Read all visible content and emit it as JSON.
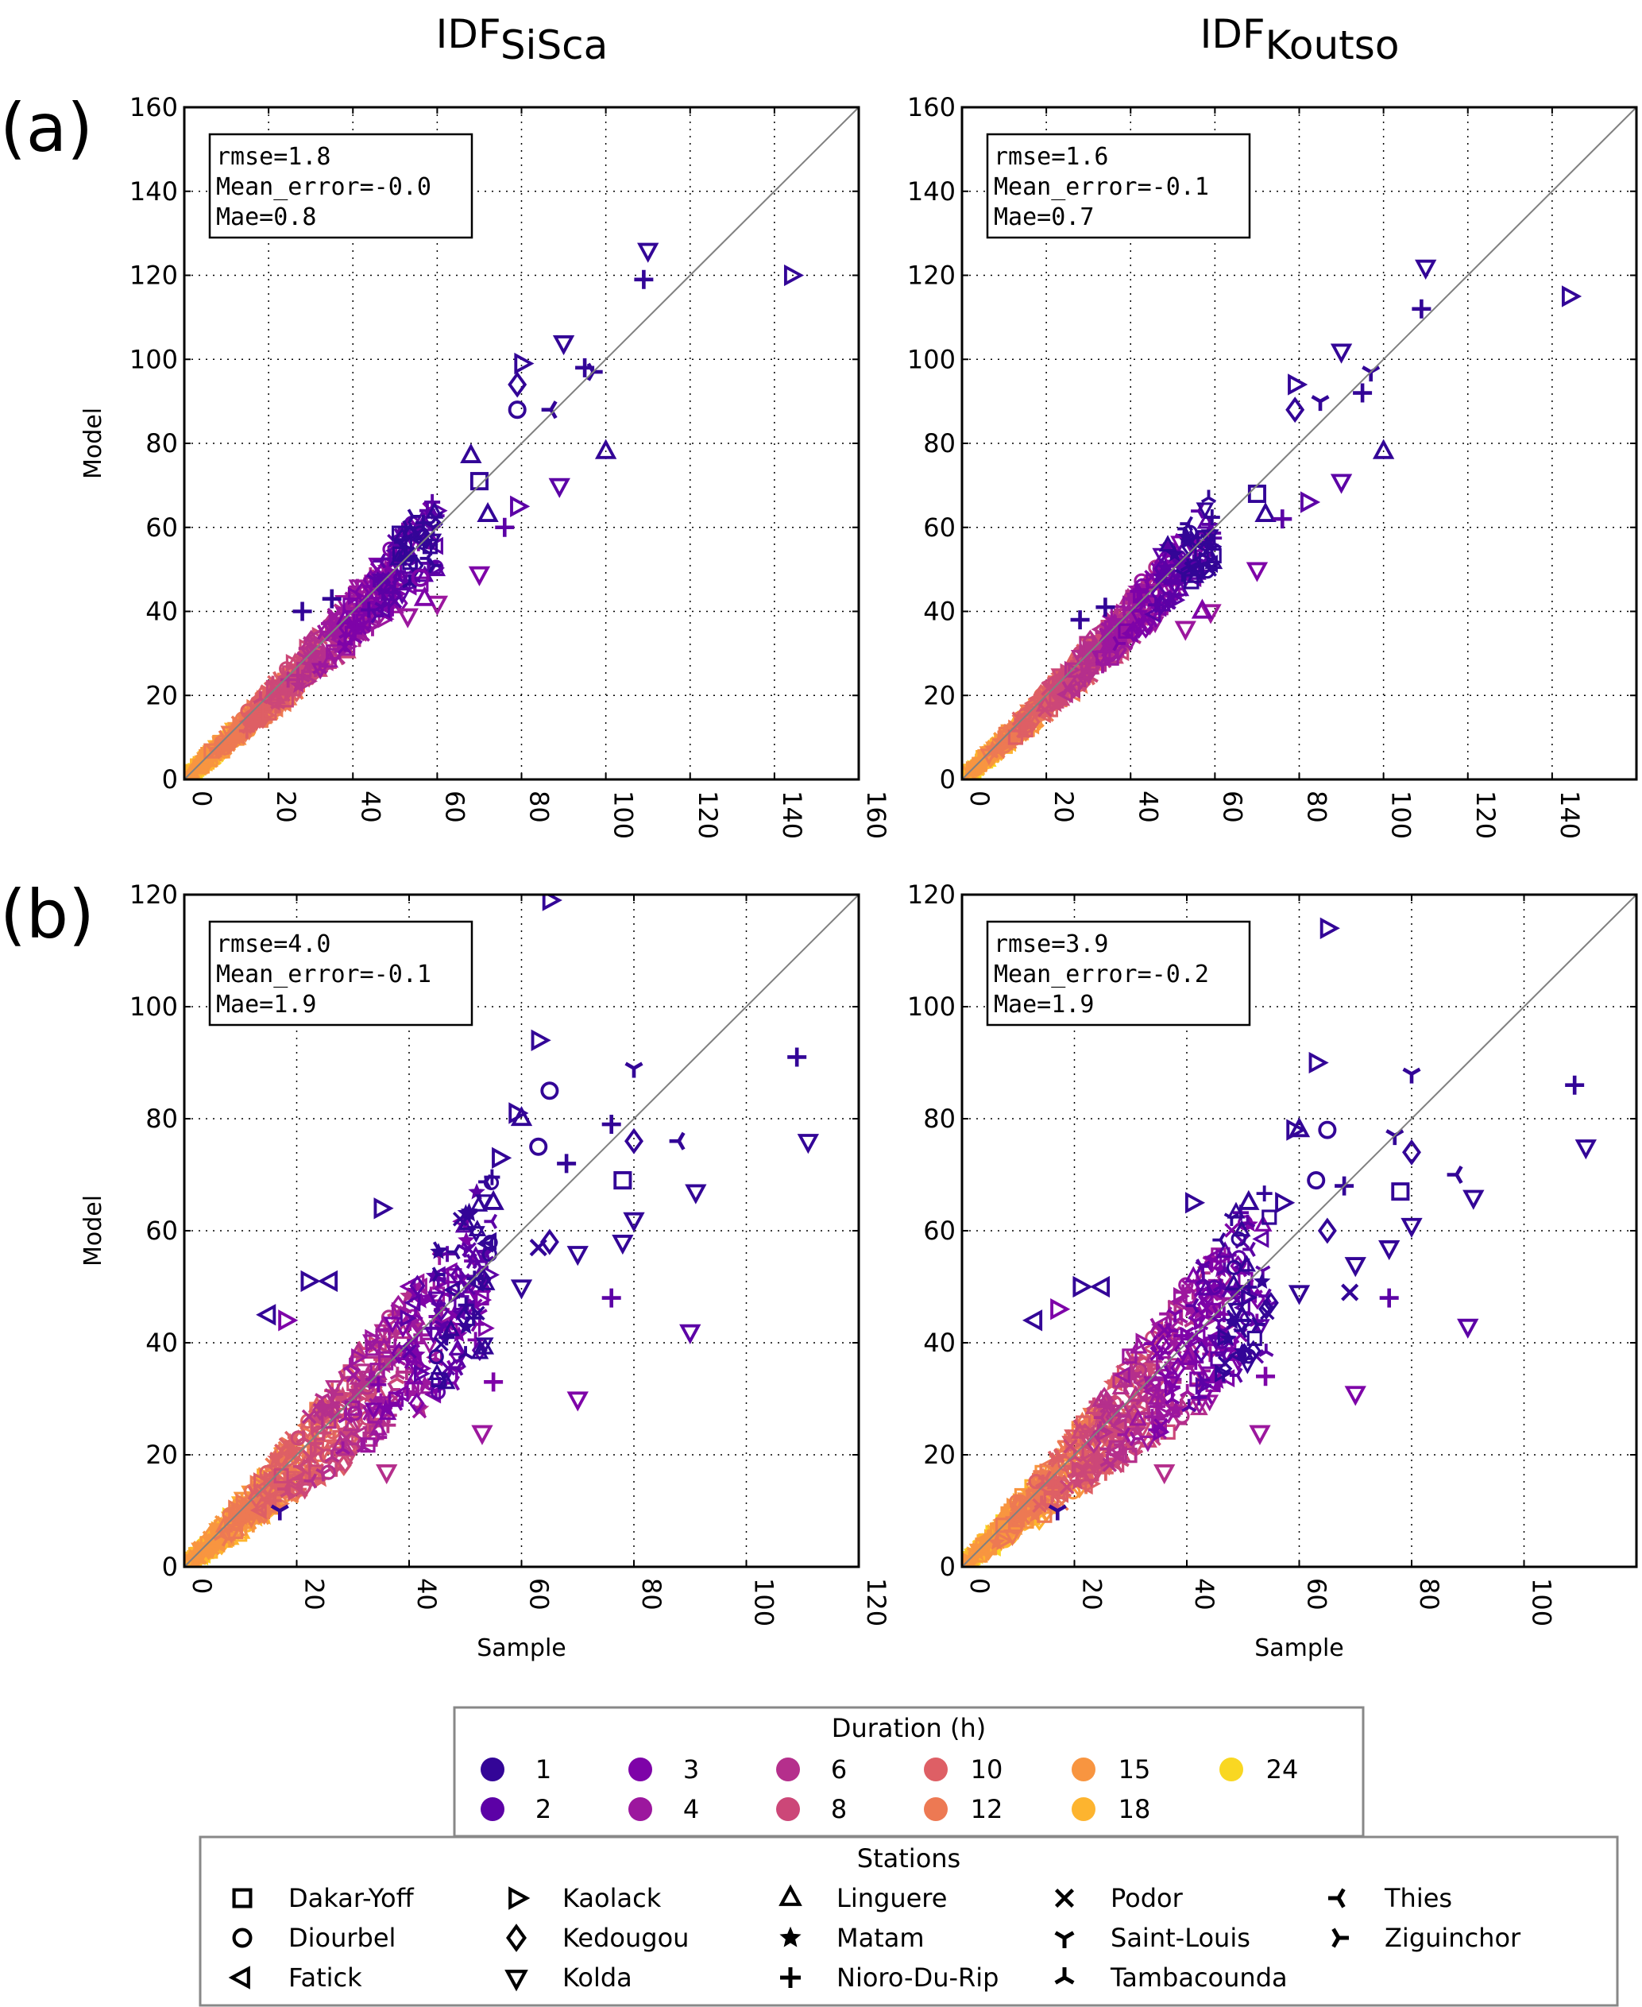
{
  "figure": {
    "row_labels": [
      "(a)",
      "(b)"
    ],
    "column_titles": [
      {
        "main": "IDF",
        "sub": "SiSca"
      },
      {
        "main": "IDF",
        "sub": "Koutso"
      }
    ]
  },
  "chart_data": [
    {
      "type": "scatter",
      "id": "a-sisca",
      "row": "(a)",
      "column_title": "IDF_SiSca",
      "xlabel": "",
      "ylabel": "Model",
      "xlim": [
        0,
        160
      ],
      "ylim": [
        0,
        160
      ],
      "xticks": [
        0,
        20,
        40,
        60,
        80,
        100,
        120,
        140,
        160
      ],
      "yticks": [
        0,
        20,
        40,
        60,
        80,
        100,
        120,
        140,
        160
      ],
      "grid": true,
      "reference_line": "y=x",
      "stats": [
        "rmse=1.8",
        "Mean_error=-0.0",
        "Mae=0.8"
      ],
      "cloud": {
        "spread": 0.16,
        "xmax": 60
      },
      "outliers": [
        {
          "x": 110,
          "y": 126,
          "station": "Kolda",
          "duration": 1
        },
        {
          "x": 109,
          "y": 119,
          "station": "Nioro-Du-Rip",
          "duration": 1
        },
        {
          "x": 144,
          "y": 120,
          "station": "Kaolack",
          "duration": 1
        },
        {
          "x": 90,
          "y": 104,
          "station": "Kolda",
          "duration": 1
        },
        {
          "x": 80,
          "y": 99,
          "station": "Kaolack",
          "duration": 1
        },
        {
          "x": 95,
          "y": 98,
          "station": "Nioro-Du-Rip",
          "duration": 1
        },
        {
          "x": 97,
          "y": 97,
          "station": "Ziguinchor",
          "duration": 1
        },
        {
          "x": 79,
          "y": 94,
          "station": "Kedougou",
          "duration": 1
        },
        {
          "x": 79,
          "y": 88,
          "station": "Diourbel",
          "duration": 1
        },
        {
          "x": 87,
          "y": 88,
          "station": "Thies",
          "duration": 1
        },
        {
          "x": 100,
          "y": 78,
          "station": "Linguere",
          "duration": 1
        },
        {
          "x": 89,
          "y": 70,
          "station": "Kolda",
          "duration": 2
        },
        {
          "x": 70,
          "y": 71,
          "station": "Dakar-Yoff",
          "duration": 1
        },
        {
          "x": 79,
          "y": 65,
          "station": "Kaolack",
          "duration": 2
        },
        {
          "x": 70,
          "y": 49,
          "station": "Kolda",
          "duration": 3
        },
        {
          "x": 60,
          "y": 42,
          "station": "Kolda",
          "duration": 4
        },
        {
          "x": 53,
          "y": 39,
          "station": "Kolda",
          "duration": 4
        },
        {
          "x": 28,
          "y": 40,
          "station": "Nioro-Du-Rip",
          "duration": 1
        },
        {
          "x": 35,
          "y": 43,
          "station": "Nioro-Du-Rip",
          "duration": 1
        },
        {
          "x": 56,
          "y": 48,
          "station": "Diourbel",
          "duration": 3
        },
        {
          "x": 57,
          "y": 43,
          "station": "Linguere",
          "duration": 3
        },
        {
          "x": 68,
          "y": 77,
          "station": "Linguere",
          "duration": 1
        },
        {
          "x": 76,
          "y": 60,
          "station": "Nioro-Du-Rip",
          "duration": 2
        },
        {
          "x": 72,
          "y": 63,
          "station": "Linguere",
          "duration": 1
        }
      ]
    },
    {
      "type": "scatter",
      "id": "a-koutso",
      "row": "(a)",
      "column_title": "IDF_Koutso",
      "xlabel": "",
      "ylabel": "",
      "xlim": [
        0,
        160
      ],
      "ylim": [
        0,
        160
      ],
      "xticks": [
        0,
        20,
        40,
        60,
        80,
        100,
        120,
        140,
        160
      ],
      "yticks": [
        0,
        20,
        40,
        60,
        80,
        100,
        120,
        140,
        160
      ],
      "grid": true,
      "reference_line": "y=x",
      "stats": [
        "rmse=1.6",
        "Mean_error=-0.1",
        "Mae=0.7"
      ],
      "cloud": {
        "spread": 0.15,
        "xmax": 60
      },
      "outliers": [
        {
          "x": 110,
          "y": 122,
          "station": "Kolda",
          "duration": 1
        },
        {
          "x": 109,
          "y": 112,
          "station": "Nioro-Du-Rip",
          "duration": 1
        },
        {
          "x": 144,
          "y": 115,
          "station": "Kaolack",
          "duration": 1
        },
        {
          "x": 90,
          "y": 102,
          "station": "Kolda",
          "duration": 1
        },
        {
          "x": 79,
          "y": 94,
          "station": "Kaolack",
          "duration": 1
        },
        {
          "x": 97,
          "y": 97,
          "station": "Saint-Louis",
          "duration": 1
        },
        {
          "x": 95,
          "y": 92,
          "station": "Nioro-Du-Rip",
          "duration": 1
        },
        {
          "x": 79,
          "y": 88,
          "station": "Kedougou",
          "duration": 1
        },
        {
          "x": 85,
          "y": 90,
          "station": "Saint-Louis",
          "duration": 1
        },
        {
          "x": 100,
          "y": 78,
          "station": "Linguere",
          "duration": 1
        },
        {
          "x": 90,
          "y": 71,
          "station": "Kolda",
          "duration": 2
        },
        {
          "x": 70,
          "y": 68,
          "station": "Dakar-Yoff",
          "duration": 1
        },
        {
          "x": 82,
          "y": 66,
          "station": "Kaolack",
          "duration": 2
        },
        {
          "x": 70,
          "y": 50,
          "station": "Kolda",
          "duration": 3
        },
        {
          "x": 59,
          "y": 40,
          "station": "Kolda",
          "duration": 4
        },
        {
          "x": 53,
          "y": 36,
          "station": "Kolda",
          "duration": 4
        },
        {
          "x": 28,
          "y": 38,
          "station": "Nioro-Du-Rip",
          "duration": 1
        },
        {
          "x": 34,
          "y": 41,
          "station": "Nioro-Du-Rip",
          "duration": 1
        },
        {
          "x": 57,
          "y": 40,
          "station": "Linguere",
          "duration": 3
        },
        {
          "x": 72,
          "y": 63,
          "station": "Linguere",
          "duration": 1
        },
        {
          "x": 76,
          "y": 62,
          "station": "Nioro-Du-Rip",
          "duration": 2
        }
      ]
    },
    {
      "type": "scatter",
      "id": "b-sisca",
      "row": "(b)",
      "column_title": "IDF_SiSca",
      "xlabel": "Sample",
      "ylabel": "Model",
      "xlim": [
        0,
        120
      ],
      "ylim": [
        0,
        120
      ],
      "xticks": [
        0,
        20,
        40,
        60,
        80,
        100,
        120
      ],
      "yticks": [
        0,
        20,
        40,
        60,
        80,
        100,
        120
      ],
      "grid": true,
      "reference_line": "y=x",
      "stats": [
        "rmse=4.0",
        "Mean_error=-0.1",
        "Mae=1.9"
      ],
      "cloud": {
        "spread": 0.3,
        "xmax": 55
      },
      "outliers": [
        {
          "x": 65,
          "y": 119,
          "station": "Kaolack",
          "duration": 1
        },
        {
          "x": 63,
          "y": 94,
          "station": "Kaolack",
          "duration": 1
        },
        {
          "x": 109,
          "y": 91,
          "station": "Nioro-Du-Rip",
          "duration": 1
        },
        {
          "x": 80,
          "y": 89,
          "station": "Saint-Louis",
          "duration": 1
        },
        {
          "x": 65,
          "y": 85,
          "station": "Diourbel",
          "duration": 1
        },
        {
          "x": 59,
          "y": 81,
          "station": "Kaolack",
          "duration": 1
        },
        {
          "x": 60,
          "y": 80,
          "station": "Linguere",
          "duration": 1
        },
        {
          "x": 111,
          "y": 76,
          "station": "Kolda",
          "duration": 1
        },
        {
          "x": 80,
          "y": 76,
          "station": "Kedougou",
          "duration": 1
        },
        {
          "x": 88,
          "y": 76,
          "station": "Thies",
          "duration": 1
        },
        {
          "x": 63,
          "y": 75,
          "station": "Diourbel",
          "duration": 1
        },
        {
          "x": 76,
          "y": 79,
          "station": "Nioro-Du-Rip",
          "duration": 1
        },
        {
          "x": 78,
          "y": 69,
          "station": "Dakar-Yoff",
          "duration": 1
        },
        {
          "x": 91,
          "y": 67,
          "station": "Kolda",
          "duration": 1
        },
        {
          "x": 56,
          "y": 73,
          "station": "Kaolack",
          "duration": 1
        },
        {
          "x": 68,
          "y": 72,
          "station": "Nioro-Du-Rip",
          "duration": 1
        },
        {
          "x": 35,
          "y": 64,
          "station": "Kaolack",
          "duration": 1
        },
        {
          "x": 55,
          "y": 65,
          "station": "Linguere",
          "duration": 1
        },
        {
          "x": 80,
          "y": 62,
          "station": "Kolda",
          "duration": 1
        },
        {
          "x": 78,
          "y": 58,
          "station": "Kolda",
          "duration": 1
        },
        {
          "x": 65,
          "y": 58,
          "station": "Kedougou",
          "duration": 1
        },
        {
          "x": 70,
          "y": 56,
          "station": "Kolda",
          "duration": 1
        },
        {
          "x": 63,
          "y": 57,
          "station": "Podor",
          "duration": 1
        },
        {
          "x": 60,
          "y": 50,
          "station": "Kolda",
          "duration": 1
        },
        {
          "x": 76,
          "y": 48,
          "station": "Nioro-Du-Rip",
          "duration": 2
        },
        {
          "x": 22,
          "y": 51,
          "station": "Kaolack",
          "duration": 1
        },
        {
          "x": 26,
          "y": 51,
          "station": "Fatick",
          "duration": 1
        },
        {
          "x": 90,
          "y": 42,
          "station": "Kolda",
          "duration": 2
        },
        {
          "x": 15,
          "y": 45,
          "station": "Fatick",
          "duration": 1
        },
        {
          "x": 18,
          "y": 44,
          "station": "Kaolack",
          "duration": 3
        },
        {
          "x": 55,
          "y": 33,
          "station": "Nioro-Du-Rip",
          "duration": 3
        },
        {
          "x": 70,
          "y": 30,
          "station": "Kolda",
          "duration": 3
        },
        {
          "x": 53,
          "y": 24,
          "station": "Kolda",
          "duration": 4
        },
        {
          "x": 36,
          "y": 17,
          "station": "Kolda",
          "duration": 6
        },
        {
          "x": 17,
          "y": 10,
          "station": "Saint-Louis",
          "duration": 1
        }
      ]
    },
    {
      "type": "scatter",
      "id": "b-koutso",
      "row": "(b)",
      "column_title": "IDF_Koutso",
      "xlabel": "Sample",
      "ylabel": "",
      "xlim": [
        0,
        120
      ],
      "ylim": [
        0,
        120
      ],
      "xticks": [
        0,
        20,
        40,
        60,
        80,
        100,
        120
      ],
      "yticks": [
        0,
        20,
        40,
        60,
        80,
        100,
        120
      ],
      "grid": true,
      "reference_line": "y=x",
      "stats": [
        "rmse=3.9",
        "Mean_error=-0.2",
        "Mae=1.9"
      ],
      "cloud": {
        "spread": 0.3,
        "xmax": 55
      },
      "outliers": [
        {
          "x": 65,
          "y": 114,
          "station": "Kaolack",
          "duration": 1
        },
        {
          "x": 63,
          "y": 90,
          "station": "Kaolack",
          "duration": 1
        },
        {
          "x": 109,
          "y": 86,
          "station": "Nioro-Du-Rip",
          "duration": 1
        },
        {
          "x": 80,
          "y": 88,
          "station": "Saint-Louis",
          "duration": 1
        },
        {
          "x": 65,
          "y": 78,
          "station": "Diourbel",
          "duration": 1
        },
        {
          "x": 59,
          "y": 78,
          "station": "Kaolack",
          "duration": 1
        },
        {
          "x": 60,
          "y": 78,
          "station": "Linguere",
          "duration": 1
        },
        {
          "x": 111,
          "y": 75,
          "station": "Kolda",
          "duration": 1
        },
        {
          "x": 80,
          "y": 74,
          "station": "Kedougou",
          "duration": 1
        },
        {
          "x": 88,
          "y": 70,
          "station": "Thies",
          "duration": 1
        },
        {
          "x": 63,
          "y": 69,
          "station": "Diourbel",
          "duration": 1
        },
        {
          "x": 77,
          "y": 77,
          "station": "Saint-Louis",
          "duration": 1
        },
        {
          "x": 78,
          "y": 67,
          "station": "Dakar-Yoff",
          "duration": 1
        },
        {
          "x": 91,
          "y": 66,
          "station": "Kolda",
          "duration": 1
        },
        {
          "x": 57,
          "y": 65,
          "station": "Kaolack",
          "duration": 1
        },
        {
          "x": 68,
          "y": 68,
          "station": "Nioro-Du-Rip",
          "duration": 1
        },
        {
          "x": 41,
          "y": 65,
          "station": "Kaolack",
          "duration": 1
        },
        {
          "x": 51,
          "y": 65,
          "station": "Linguere",
          "duration": 1
        },
        {
          "x": 80,
          "y": 61,
          "station": "Kolda",
          "duration": 1
        },
        {
          "x": 76,
          "y": 57,
          "station": "Kolda",
          "duration": 1
        },
        {
          "x": 65,
          "y": 60,
          "station": "Kedougou",
          "duration": 1
        },
        {
          "x": 70,
          "y": 54,
          "station": "Kolda",
          "duration": 1
        },
        {
          "x": 69,
          "y": 49,
          "station": "Podor",
          "duration": 1
        },
        {
          "x": 60,
          "y": 49,
          "station": "Kolda",
          "duration": 1
        },
        {
          "x": 76,
          "y": 48,
          "station": "Nioro-Du-Rip",
          "duration": 2
        },
        {
          "x": 21,
          "y": 50,
          "station": "Kaolack",
          "duration": 1
        },
        {
          "x": 25,
          "y": 50,
          "station": "Fatick",
          "duration": 1
        },
        {
          "x": 90,
          "y": 43,
          "station": "Kolda",
          "duration": 2
        },
        {
          "x": 13,
          "y": 44,
          "station": "Fatick",
          "duration": 1
        },
        {
          "x": 17,
          "y": 46,
          "station": "Kaolack",
          "duration": 3
        },
        {
          "x": 54,
          "y": 34,
          "station": "Nioro-Du-Rip",
          "duration": 3
        },
        {
          "x": 70,
          "y": 31,
          "station": "Kolda",
          "duration": 3
        },
        {
          "x": 53,
          "y": 24,
          "station": "Kolda",
          "duration": 4
        },
        {
          "x": 36,
          "y": 17,
          "station": "Kolda",
          "duration": 6
        },
        {
          "x": 17,
          "y": 10,
          "station": "Saint-Louis",
          "duration": 1
        }
      ]
    }
  ],
  "legend_duration": {
    "title": "Duration (h)",
    "items": [
      {
        "label": "1",
        "value": 1,
        "color": "#330597"
      },
      {
        "label": "2",
        "value": 2,
        "color": "#5c01a6"
      },
      {
        "label": "3",
        "value": 3,
        "color": "#7e03a8"
      },
      {
        "label": "4",
        "value": 4,
        "color": "#9c179e"
      },
      {
        "label": "6",
        "value": 6,
        "color": "#b52f8c"
      },
      {
        "label": "8",
        "value": 8,
        "color": "#cc4778"
      },
      {
        "label": "10",
        "value": 10,
        "color": "#de5f65"
      },
      {
        "label": "12",
        "value": 12,
        "color": "#ed7953"
      },
      {
        "label": "15",
        "value": 15,
        "color": "#f89540"
      },
      {
        "label": "18",
        "value": 18,
        "color": "#fdb42f"
      },
      {
        "label": "24",
        "value": 24,
        "color": "#f9d722"
      }
    ]
  },
  "legend_stations": {
    "title": "Stations",
    "items": [
      {
        "label": "Dakar-Yoff",
        "marker": "square-icon"
      },
      {
        "label": "Diourbel",
        "marker": "circle-icon"
      },
      {
        "label": "Fatick",
        "marker": "triangle-left-icon"
      },
      {
        "label": "Kaolack",
        "marker": "triangle-right-icon"
      },
      {
        "label": "Kedougou",
        "marker": "diamond-icon"
      },
      {
        "label": "Kolda",
        "marker": "triangle-down-icon"
      },
      {
        "label": "Linguere",
        "marker": "triangle-up-icon"
      },
      {
        "label": "Matam",
        "marker": "star-icon"
      },
      {
        "label": "Nioro-Du-Rip",
        "marker": "plus-icon"
      },
      {
        "label": "Podor",
        "marker": "x-icon"
      },
      {
        "label": "Saint-Louis",
        "marker": "tri-down-icon"
      },
      {
        "label": "Tambacounda",
        "marker": "tri-up-icon"
      },
      {
        "label": "Thies",
        "marker": "tri-left-icon"
      },
      {
        "label": "Ziguinchor",
        "marker": "tri-right-icon"
      }
    ]
  }
}
